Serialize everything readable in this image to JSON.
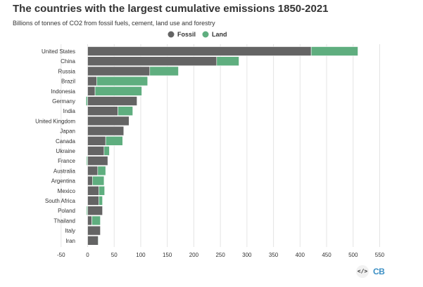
{
  "header": {
    "title": "The countries with the largest cumulative emissions 1850-2021",
    "subtitle": "Billions of tonnes of CO2 from fossil fuels, cement, land use and forestry"
  },
  "icons": {
    "embed": "embed-code-icon",
    "logo": "carbon-brief-logo"
  },
  "footer": {
    "embed_glyph": "</>",
    "logo_text": "CB"
  },
  "colors": {
    "fossil": "#646464",
    "land": "#5fae7f",
    "grid": "#e4e4e4",
    "logo": "#3b8fc4"
  },
  "chart_data": {
    "type": "bar",
    "orientation": "horizontal",
    "stacked": true,
    "title": "The countries with the largest cumulative emissions 1850-2021",
    "subtitle": "Billions of tonnes of CO2 from fossil fuels, cement, land use and forestry",
    "xlabel": "",
    "ylabel": "",
    "xlim": [
      -50,
      550
    ],
    "xticks": [
      -50,
      0,
      50,
      100,
      150,
      200,
      250,
      300,
      350,
      400,
      450,
      500,
      550
    ],
    "grid": true,
    "legend": "top-center",
    "categories": [
      "United States",
      "China",
      "Russia",
      "Brazil",
      "Indonesia",
      "Germany",
      "India",
      "United Kingdom",
      "Japan",
      "Canada",
      "Ukraine",
      "France",
      "Australia",
      "Argentina",
      "Mexico",
      "South Africa",
      "Poland",
      "Thailand",
      "Italy",
      "Iran"
    ],
    "series": [
      {
        "name": "Fossil",
        "values": [
          421,
          243,
          117,
          17,
          14,
          93,
          57,
          78,
          68,
          34,
          31,
          38,
          19,
          9,
          21,
          21,
          28,
          8,
          24,
          20
        ]
      },
      {
        "name": "Land",
        "values": [
          88,
          42,
          54,
          96,
          88,
          -3,
          28,
          0,
          0,
          32,
          10,
          -2,
          15,
          22,
          11,
          7,
          -2,
          16,
          0,
          1
        ]
      }
    ]
  }
}
